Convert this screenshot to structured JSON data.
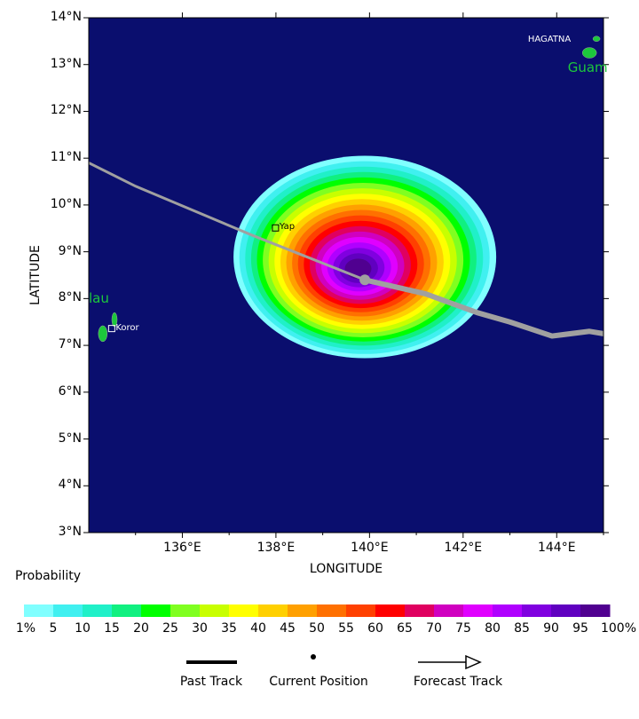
{
  "map": {
    "xlabel": "LONGITUDE",
    "ylabel": "LATITUDE",
    "lon_range": [
      134,
      145
    ],
    "lat_range": [
      3,
      14
    ],
    "lon_ticks": [
      "136°E",
      "138°E",
      "140°E",
      "142°E",
      "144°E"
    ],
    "lat_ticks": [
      "3°N",
      "4°N",
      "5°N",
      "6°N",
      "7°N",
      "8°N",
      "9°N",
      "10°N",
      "11°N",
      "12°N",
      "13°N",
      "14°N"
    ],
    "ocean_color": "#0a0e6e",
    "places": [
      {
        "name": "Yap",
        "label": "Yap",
        "lon": 138.0,
        "lat": 9.5
      },
      {
        "name": "Koror",
        "label": "Koror",
        "lon": 134.5,
        "lat": 7.35
      },
      {
        "name": "Hagatna",
        "label": "HAGATNA",
        "lon": 144.75,
        "lat": 13.5
      },
      {
        "name": "Guam",
        "label": "Guam",
        "lon": 144.35,
        "lat": 13.0
      },
      {
        "name": "Palau",
        "label": "lau",
        "lon": 134.0,
        "lat": 8.0
      }
    ],
    "track": [
      [
        134.0,
        10.9
      ],
      [
        135.0,
        10.4
      ],
      [
        137.5,
        9.35
      ],
      [
        139.9,
        8.4
      ],
      [
        141.2,
        8.1
      ],
      [
        142.3,
        7.7
      ],
      [
        143.0,
        7.5
      ],
      [
        143.9,
        7.2
      ],
      [
        144.7,
        7.3
      ],
      [
        145.0,
        7.25
      ]
    ],
    "current_position": {
      "lon": 139.9,
      "lat": 8.4
    },
    "probability_center": {
      "lon": 139.9,
      "lat": 8.85
    }
  },
  "colorbar": {
    "title": "Probability",
    "labels": [
      "1%",
      "5",
      "10",
      "15",
      "20",
      "25",
      "30",
      "35",
      "40",
      "45",
      "50",
      "55",
      "60",
      "65",
      "70",
      "75",
      "80",
      "85",
      "90",
      "95",
      "100%"
    ],
    "colors": [
      "#80ffff",
      "#40f0f0",
      "#20f0c8",
      "#10f080",
      "#00ff00",
      "#80ff20",
      "#c8ff00",
      "#ffff00",
      "#ffd000",
      "#ffa000",
      "#ff7000",
      "#ff4000",
      "#ff0000",
      "#e00060",
      "#d000c0",
      "#e000ff",
      "#b000ff",
      "#8000e0",
      "#6000c0",
      "#500090"
    ]
  },
  "legend": {
    "past_track": "Past Track",
    "current_position": "Current Position",
    "forecast_track": "Forecast Track"
  }
}
